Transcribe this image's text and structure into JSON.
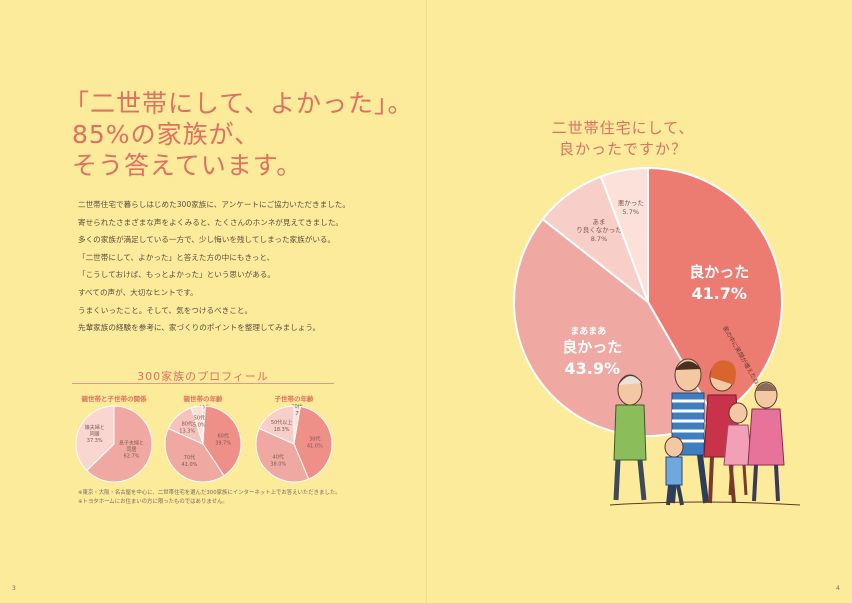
{
  "headline": {
    "line1": "「二世帯にして、よかった」。",
    "line2": "85%の家族が、",
    "line3": "そう答えています。"
  },
  "body_paragraphs": [
    "二世帯住宅で暮らしはじめた300家族に、アンケートにご協力いただきました。",
    "寄せられたさまざまな声をよくみると、たくさんのホンネが見えてきました。",
    "多くの家族が満足している一方で、少し悔いを残してしまった家族がいる。",
    "「二世帯にして、よかった」と答えた方の中にもきっと、",
    "「こうしておけば、もっとよかった」という思いがある。",
    "すべての声が、大切なヒントです。",
    "うまくいったこと。そして、気をつけるべきこと。",
    "先輩家族の経験を参考に、家づくりのポイントを整理してみましょう。"
  ],
  "profile": {
    "title": "300家族のプロフィール"
  },
  "question": {
    "line1": "二世帯住宅にして、",
    "line2": "良かったですか？"
  },
  "illustration_note": "家の中に笑顔が増えたね！",
  "footnote": {
    "line1": "※東京・大阪・名古屋を中心に、二世帯住宅を選んだ300家族にインターネット上でお答えいただきました。",
    "line2": "※トヨタホームにお住まいの方に限ったものではありません。"
  },
  "page_numbers": {
    "left": "3",
    "right": "4"
  },
  "colors": {
    "background": "#fbeb9b",
    "accent": "#e0705f",
    "slice_dark": "#ec7c72",
    "slice_mid": "#f0a8a2",
    "slice_light": "#f7cfc8",
    "slice_pale": "#fbe1da"
  },
  "chart_data": [
    {
      "type": "pie",
      "title": "二世帯住宅にして、良かったですか？",
      "slices": [
        {
          "label": "良かった",
          "value": 41.7,
          "display": "41.7%"
        },
        {
          "label": "まあまあ良かった",
          "value": 43.9,
          "display": "43.9%"
        },
        {
          "label": "あまり良くなかった",
          "value": 8.7,
          "display": "8.7%"
        },
        {
          "label": "悪かった",
          "value": 5.7,
          "display": "5.7%"
        }
      ]
    },
    {
      "type": "pie",
      "title": "親世帯と子世帯の関係",
      "slices": [
        {
          "label": "息子夫婦と同居",
          "value": 62.7,
          "display": "62.7%"
        },
        {
          "label": "娘夫婦と同居",
          "value": 37.3,
          "display": "37.3%"
        }
      ]
    },
    {
      "type": "pie",
      "title": "親世帯の年齢",
      "slices": [
        {
          "label": "40代",
          "value": 1.0,
          "display": "1.0%"
        },
        {
          "label": "60代",
          "value": 39.7,
          "display": "39.7%"
        },
        {
          "label": "70代",
          "value": 41.0,
          "display": "41.0%"
        },
        {
          "label": "80代",
          "value": 13.3,
          "display": "13.3%"
        },
        {
          "label": "50代",
          "value": 5.0,
          "display": "5.0%"
        }
      ]
    },
    {
      "type": "pie",
      "title": "子世帯の年齢",
      "slices": [
        {
          "label": "20代",
          "value": 2.7,
          "display": "2.7%"
        },
        {
          "label": "30代",
          "value": 41.0,
          "display": "41.0%"
        },
        {
          "label": "40代",
          "value": 38.0,
          "display": "38.0%"
        },
        {
          "label": "50代以上",
          "value": 18.3,
          "display": "18.3%"
        }
      ]
    }
  ]
}
